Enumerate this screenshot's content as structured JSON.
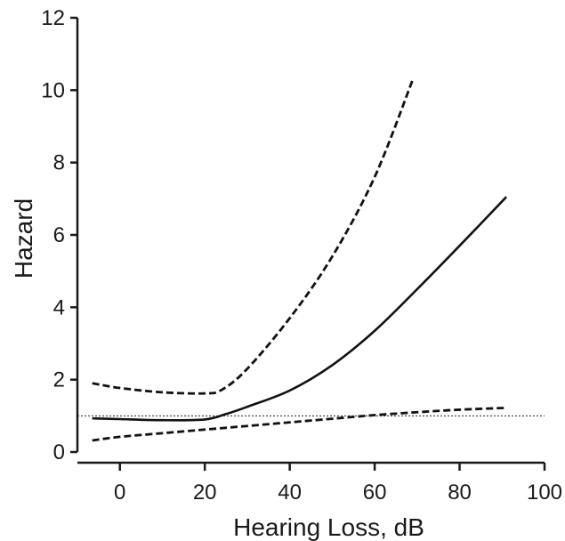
{
  "chart_data": {
    "type": "line",
    "title": "",
    "xlabel": "Hearing Loss, dB",
    "ylabel": "Hazard",
    "xlim": [
      -10,
      100
    ],
    "ylim": [
      0,
      12
    ],
    "x_ticks": [
      0,
      20,
      40,
      60,
      80,
      100
    ],
    "y_ticks": [
      0,
      2,
      4,
      6,
      8,
      10,
      12
    ],
    "grid": false,
    "legend": "none",
    "reference_line": {
      "y": 1,
      "style": "dotted"
    },
    "series": [
      {
        "style": "solid",
        "color": "#111111",
        "points": [
          [
            -6.5,
            0.93
          ],
          [
            0,
            0.91
          ],
          [
            10,
            0.88
          ],
          [
            20,
            0.9
          ],
          [
            25,
            1.05
          ],
          [
            30,
            1.25
          ],
          [
            40,
            1.7
          ],
          [
            50,
            2.4
          ],
          [
            60,
            3.35
          ],
          [
            70,
            4.5
          ],
          [
            80,
            5.7
          ],
          [
            91,
            7.05
          ]
        ]
      },
      {
        "style": "dashed",
        "color": "#111111",
        "points": [
          [
            -6.5,
            1.9
          ],
          [
            0,
            1.77
          ],
          [
            10,
            1.65
          ],
          [
            20,
            1.62
          ],
          [
            24,
            1.72
          ],
          [
            30,
            2.3
          ],
          [
            40,
            3.7
          ],
          [
            50,
            5.4
          ],
          [
            60,
            7.6
          ],
          [
            69,
            10.3
          ]
        ]
      },
      {
        "style": "dashed",
        "color": "#111111",
        "points": [
          [
            -6.5,
            0.32
          ],
          [
            0,
            0.42
          ],
          [
            10,
            0.52
          ],
          [
            20,
            0.62
          ],
          [
            30,
            0.72
          ],
          [
            40,
            0.82
          ],
          [
            50,
            0.92
          ],
          [
            60,
            1.02
          ],
          [
            70,
            1.1
          ],
          [
            80,
            1.17
          ],
          [
            91,
            1.22
          ]
        ]
      }
    ]
  }
}
